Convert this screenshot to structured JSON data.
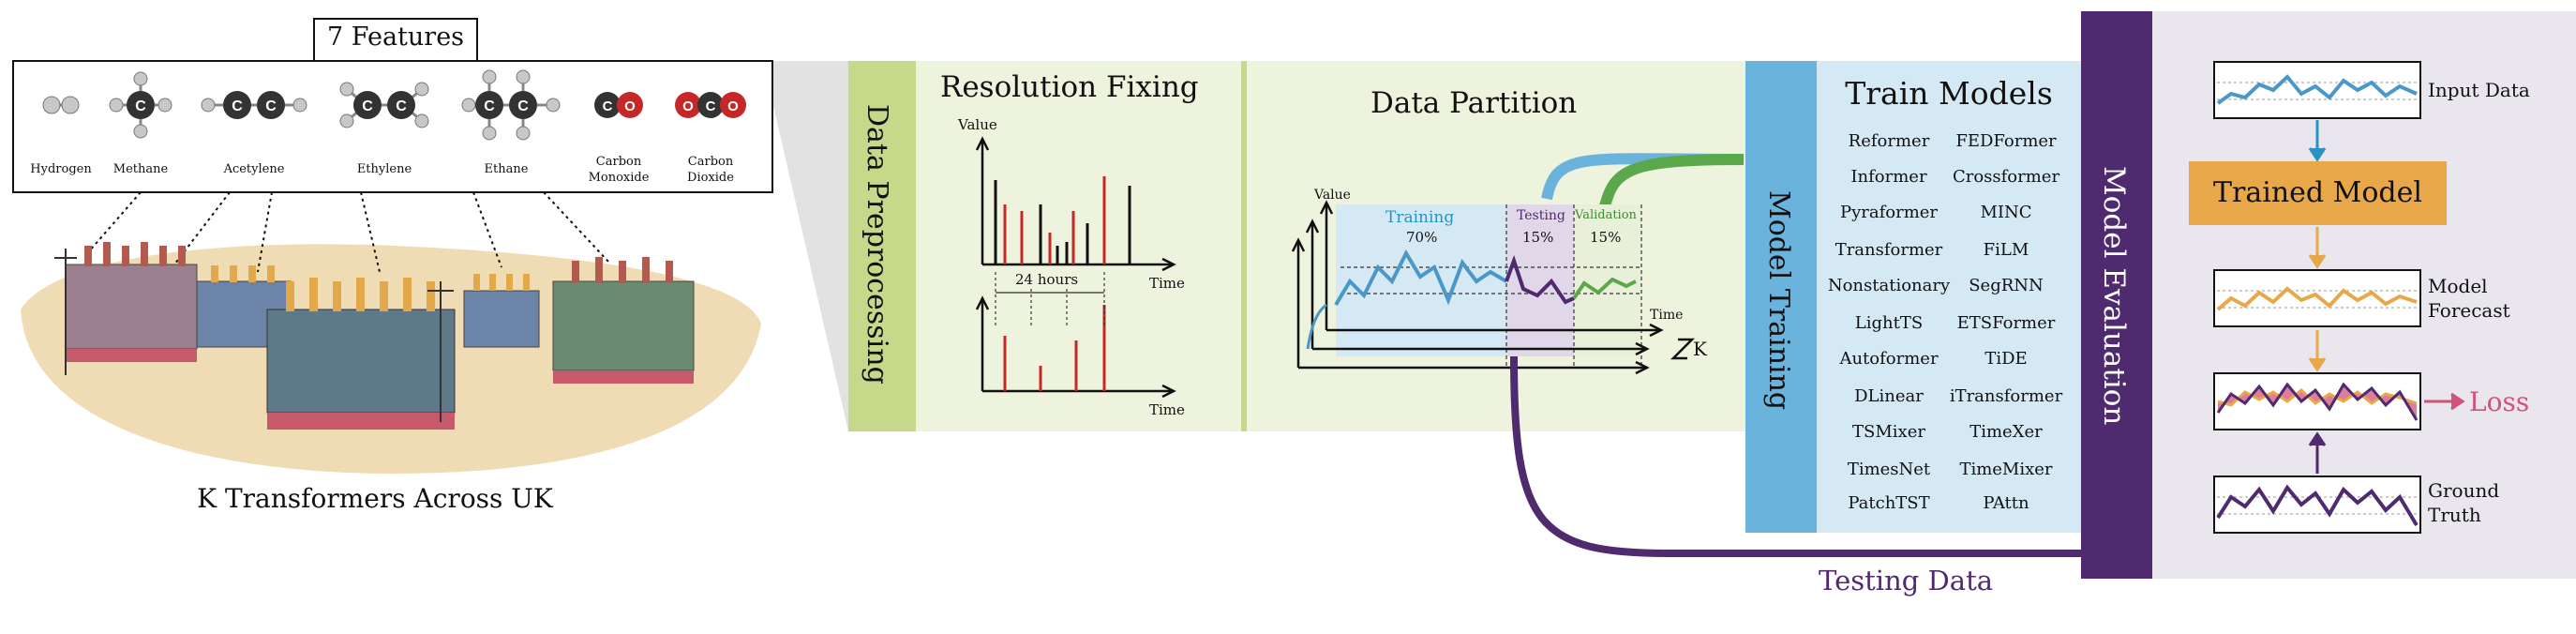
{
  "features": {
    "box_title": "7 Features",
    "molecules": [
      {
        "name": "Hydrogen",
        "color": "#b0b0b0"
      },
      {
        "name": "Methane",
        "color": "#333333"
      },
      {
        "name": "Acetylene",
        "color": "#333333"
      },
      {
        "name": "Ethylene",
        "color": "#333333"
      },
      {
        "name": "Ethane",
        "color": "#333333"
      },
      {
        "name": "Carbon\nMonoxide",
        "color": "#c62828"
      },
      {
        "name": "Carbon\nDioxide",
        "color": "#c62828"
      }
    ],
    "caption": "K Transformers Across UK"
  },
  "preprocessing": {
    "label": "Data Preprocessing",
    "fixing_title": "Resolution Fixing",
    "value_axis": "Value",
    "time_axis": "Time",
    "interval": "24 hours",
    "partition_title": "Data Partition",
    "training": "Training",
    "training_pct": "70%",
    "testing": "Testing",
    "testing_pct": "15%",
    "validation": "Validation",
    "validation_pct": "15%",
    "k_label": "K"
  },
  "training": {
    "label": "Model Training",
    "title": "Train Models",
    "models_left": [
      "Reformer",
      "Informer",
      "Pyraformer",
      "Transformer",
      "Nonstationary",
      "LightTS",
      "Autoformer",
      "DLinear",
      "TSMixer",
      "TimesNet",
      "PatchTST"
    ],
    "models_right": [
      "FEDFormer",
      "Crossformer",
      "MINC",
      "FiLM",
      "SegRNN",
      "ETSFormer",
      "TiDE",
      "iTransformer",
      "TimeXer",
      "TimeMixer",
      "PAttn"
    ]
  },
  "evaluation": {
    "label": "Model Evaluation",
    "input": "Input Data",
    "trained_model": "Trained Model",
    "forecast": "Model\nForecast",
    "loss": "Loss",
    "ground_truth": "Ground\nTruth",
    "testing_data": "Testing Data"
  },
  "colors": {
    "prep_green": "#c6d98a",
    "prep_light": "#eef3dd",
    "train_blue": "#6ab3dc",
    "train_light": "#d5e9f5",
    "eval_purple": "#4f2a6e",
    "eval_light": "#e9e6ee",
    "orange": "#e8a84a",
    "pink": "#d2527a",
    "series_blue": "#4a97c8",
    "series_purple": "#4f2a6e",
    "series_green": "#5aa84a"
  }
}
